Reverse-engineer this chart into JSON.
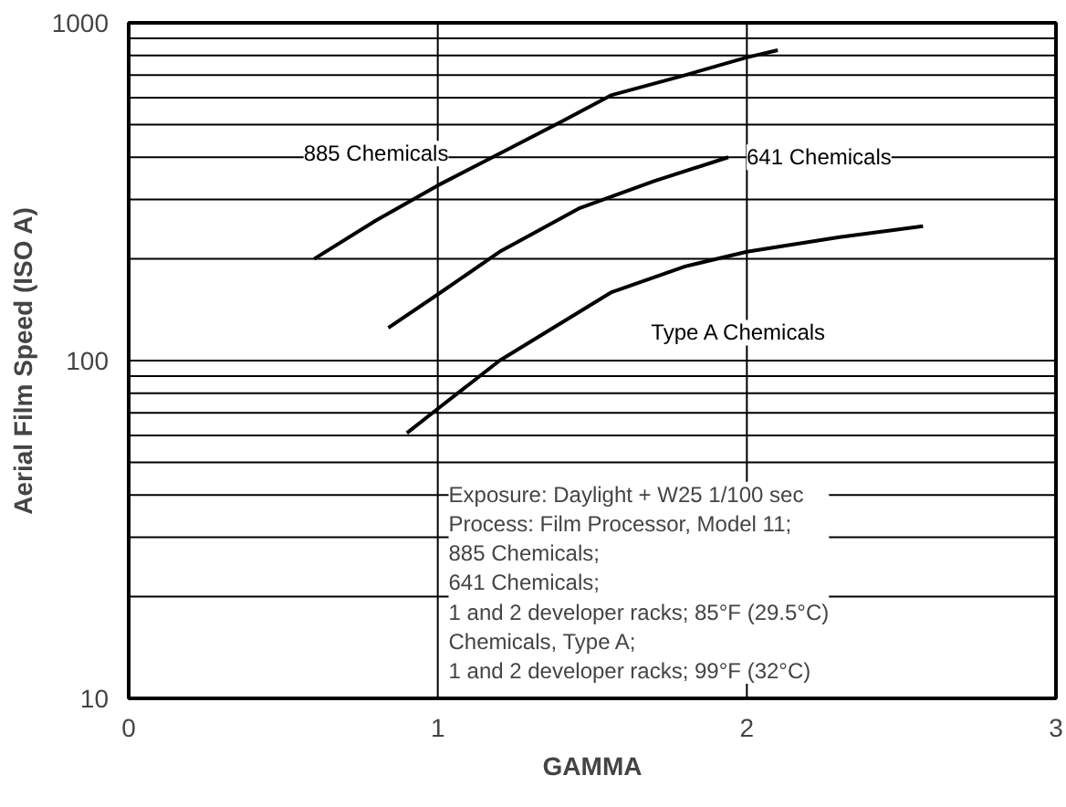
{
  "chart_data": {
    "type": "line",
    "xlabel": "GAMMA",
    "ylabel": "Aerial Film Speed (ISO A)",
    "log": "y",
    "grid": true,
    "line_style": "solid",
    "marker": "none",
    "xlim": [
      0,
      3
    ],
    "xticks": [
      0,
      1,
      2,
      3
    ],
    "ylim": [
      10,
      1000
    ],
    "yticks": [
      10,
      {
        "value": 20,
        "label": null
      },
      {
        "value": 30,
        "label": null
      },
      {
        "value": 40,
        "label": null
      },
      {
        "value": 50,
        "label": null
      },
      {
        "value": 60,
        "label": null
      },
      {
        "value": 70,
        "label": null
      },
      {
        "value": 80,
        "label": null
      },
      {
        "value": 90,
        "label": null
      },
      100,
      {
        "value": 200,
        "label": null
      },
      {
        "value": 300,
        "label": null
      },
      {
        "value": 400,
        "label": null
      },
      {
        "value": 500,
        "label": null
      },
      {
        "value": 600,
        "label": null
      },
      {
        "value": 700,
        "label": null
      },
      {
        "value": 800,
        "label": null
      },
      {
        "value": 900,
        "label": null
      },
      1000
    ],
    "series": [
      {
        "name": "885 Chemicals",
        "color": "#000000",
        "x": [
          0.6,
          0.8,
          1.0,
          1.2,
          1.4,
          1.56,
          1.8,
          2.0,
          2.1
        ],
        "values": [
          200,
          260,
          330,
          410,
          510,
          610,
          700,
          790,
          830
        ]
      },
      {
        "name": "641 Chemicals",
        "color": "#000000",
        "x": [
          0.84,
          1.0,
          1.2,
          1.46,
          1.7,
          1.94
        ],
        "values": [
          125,
          157,
          210,
          283,
          340,
          400
        ]
      },
      {
        "name": "Type A Chemicals",
        "color": "#000000",
        "x": [
          0.9,
          1.0,
          1.2,
          1.56,
          1.8,
          2.0,
          2.3,
          2.57
        ],
        "values": [
          61,
          72,
          100,
          159,
          190,
          210,
          232,
          250
        ]
      }
    ],
    "annotations": [
      "Exposure: Daylight + W25 1/100 sec",
      "Process: Film Processor, Model 11;",
      "885 Chemicals;",
      "641 Chemicals;",
      "1 and 2 developer racks; 85°F (29.5°C)",
      "Chemicals, Type A;",
      "1 and 2 developer racks; 99°F (32°C)"
    ]
  }
}
